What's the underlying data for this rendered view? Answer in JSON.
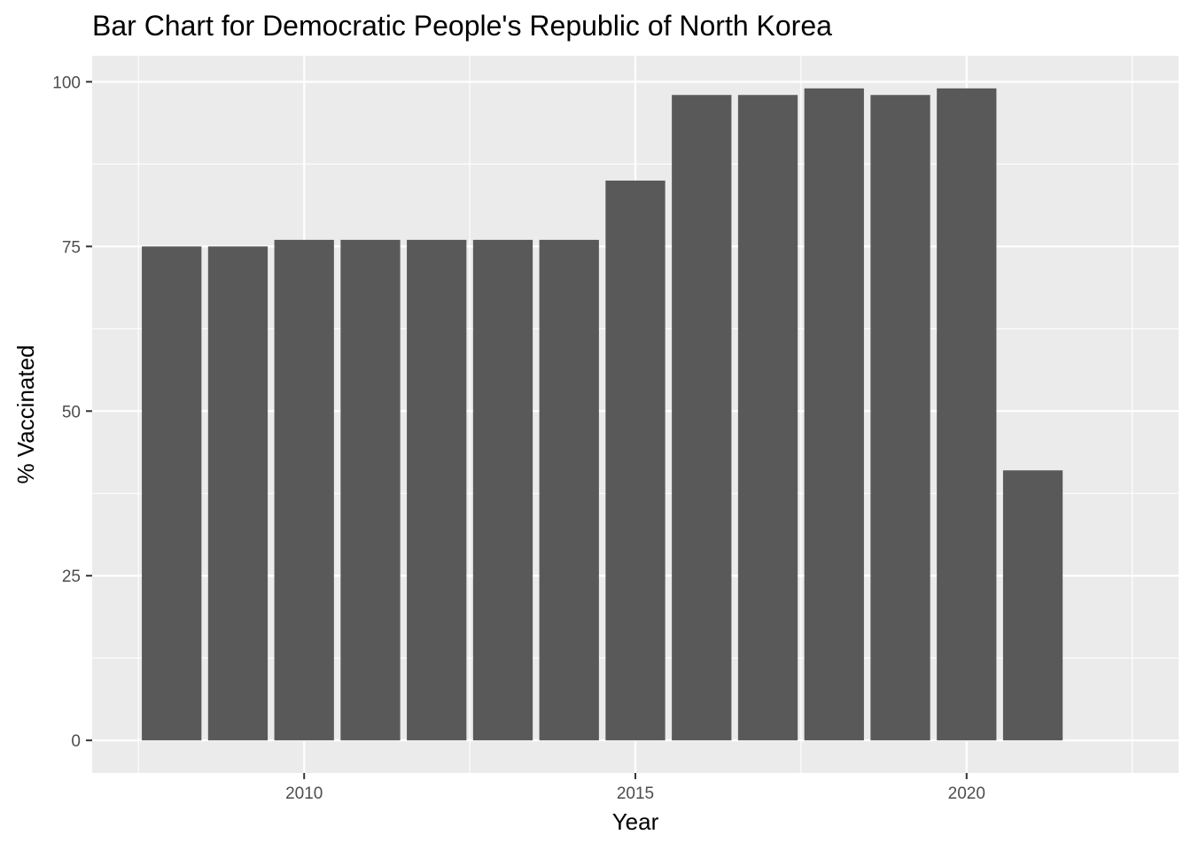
{
  "chart_data": {
    "type": "bar",
    "title": "Bar Chart for Democratic People's Republic of North Korea",
    "xlabel": "Year",
    "ylabel": "% Vaccinated",
    "x": [
      2008,
      2009,
      2010,
      2011,
      2012,
      2013,
      2014,
      2015,
      2016,
      2017,
      2018,
      2019,
      2020,
      2021
    ],
    "values": [
      75,
      75,
      76,
      76,
      76,
      76,
      76,
      85,
      98,
      98,
      99,
      98,
      99,
      41
    ],
    "xlim": [
      2006.8,
      2023.2
    ],
    "ylim": [
      -4.95,
      103.95
    ],
    "x_ticks": [
      2010,
      2015,
      2020
    ],
    "x_tick_labels": [
      "2010",
      "2015",
      "2020"
    ],
    "y_ticks": [
      0,
      25,
      50,
      75,
      100
    ],
    "y_tick_labels": [
      "0",
      "25",
      "50",
      "75",
      "100"
    ],
    "grid": true,
    "legend": "none",
    "colors": {
      "bar": "#595959",
      "panel": "#ebebeb",
      "grid": "#ffffff",
      "tick_text": "#4d4d4d",
      "text": "#000000"
    }
  }
}
